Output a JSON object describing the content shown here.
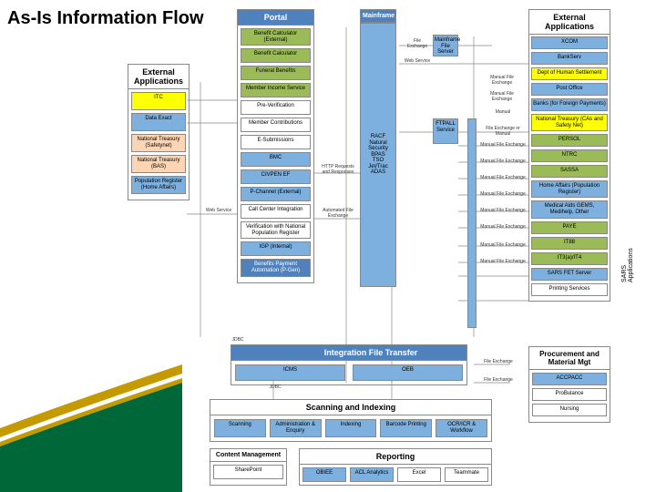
{
  "title": "As-Is Information Flow",
  "colors": {
    "blue": "#7db0de",
    "blue_dark": "#4f81bd",
    "green": "#9bbb59",
    "yellow": "#ffff00",
    "peach": "#fcd5b4",
    "gray": "#d9d9d9",
    "white": "#ffffff",
    "border": "#888888",
    "swoosh_green": "#006838",
    "swoosh_gold": "#c49a00"
  },
  "columns": {
    "ext_left": {
      "header": "External Applications",
      "items": [
        {
          "label": "ITC",
          "fill": "yellow"
        },
        {
          "label": "Data Exact",
          "fill": "blue"
        },
        {
          "label": "National Treasury (Safetynet)",
          "fill": "peach"
        },
        {
          "label": "National Treasury (BAS)",
          "fill": "peach"
        },
        {
          "label": "Population Register (Home Affairs)",
          "fill": "blue"
        }
      ]
    },
    "portal": {
      "header": "Portal",
      "items": [
        {
          "label": "Benefit Calculator (External)",
          "fill": "green"
        },
        {
          "label": "Benefit Calculator",
          "fill": "green"
        },
        {
          "label": "Funeral Benefits",
          "fill": "green"
        },
        {
          "label": "Member Income Service",
          "fill": "green"
        },
        {
          "label": "Pre-Verification",
          "fill": "white"
        },
        {
          "label": "Member Contributions",
          "fill": "white"
        },
        {
          "label": "E-Submissions",
          "fill": "white"
        },
        {
          "label": "BMC",
          "fill": "blue"
        },
        {
          "label": "CIVPEN EF",
          "fill": "blue"
        },
        {
          "label": "P-Channel (External)",
          "fill": "blue"
        },
        {
          "label": "Call Center Integration",
          "fill": "white"
        },
        {
          "label": "Verification with National Population Register",
          "fill": "white"
        },
        {
          "label": "IGP (Internal)",
          "fill": "blue"
        },
        {
          "label": "Benefits Payment Automation (P-Gen)",
          "fill": "blue_dark"
        }
      ]
    },
    "mainframe": {
      "header": "Mainframe",
      "body": "RACF\nNatural Security\nBPAS\nTSO\nJet/Trac\nADAS"
    },
    "mid": [
      {
        "label": "Mainframe File Server",
        "fill": "blue"
      },
      {
        "label": "FTPALL Service",
        "fill": "blue"
      }
    ],
    "integration": {
      "header": "Integration File Transfer",
      "items": [
        {
          "label": "ICMS",
          "fill": "blue"
        },
        {
          "label": "OEB",
          "fill": "blue"
        }
      ]
    },
    "scanning": {
      "header": "Scanning and Indexing",
      "items": [
        {
          "label": "Scanning",
          "fill": "blue"
        },
        {
          "label": "Administration & Enquiry",
          "fill": "blue"
        },
        {
          "label": "Indexing",
          "fill": "blue"
        },
        {
          "label": "Barcode Printing",
          "fill": "blue"
        },
        {
          "label": "OCR/ICR & Workflow",
          "fill": "blue"
        }
      ]
    },
    "cm": {
      "header": "Content Management",
      "items": [
        {
          "label": "SharePoint",
          "fill": "white"
        }
      ]
    },
    "reporting": {
      "header": "Reporting",
      "items": [
        {
          "label": "OBIEE",
          "fill": "blue"
        },
        {
          "label": "ACL Analytics",
          "fill": "blue"
        },
        {
          "label": "Excel",
          "fill": "white"
        },
        {
          "label": "Teammate",
          "fill": "white"
        }
      ]
    },
    "ext_right": {
      "header": "External Applications",
      "items": [
        {
          "label": "XCOM",
          "fill": "blue"
        },
        {
          "label": "BankServ",
          "fill": "blue"
        },
        {
          "label": "Dept of Human Settlement",
          "fill": "yellow"
        },
        {
          "label": "Post Office",
          "fill": "blue"
        },
        {
          "label": "Banks (for Foreign Payments)",
          "fill": "blue"
        },
        {
          "label": "National Treasury (CAs and Safety Net)",
          "fill": "yellow"
        },
        {
          "label": "PERSOL",
          "fill": "green"
        },
        {
          "label": "NTRC",
          "fill": "green"
        },
        {
          "label": "SASSA",
          "fill": "green"
        },
        {
          "label": "Home Affairs (Population Register)",
          "fill": "blue"
        },
        {
          "label": "Medical Aids GEMS, Medihelp, Other",
          "fill": "blue"
        },
        {
          "label": "PAYE",
          "fill": "green"
        },
        {
          "label": "IT88",
          "fill": "green"
        },
        {
          "label": "IT3(a)/IT4",
          "fill": "green"
        },
        {
          "label": "SARS FET Server",
          "fill": "blue"
        },
        {
          "label": "Printing Services",
          "fill": "white"
        }
      ]
    },
    "procure": {
      "header": "Procurement and Material Mgt",
      "items": [
        {
          "label": "ACCPACC",
          "fill": "blue"
        },
        {
          "label": "ProBulance",
          "fill": "white"
        },
        {
          "label": "Nursing",
          "fill": "white"
        }
      ]
    }
  },
  "right_label": "SARS Applications",
  "edge_labels": [
    "Web Service",
    "File Exchange",
    "Web Service",
    "Manual File Exchange",
    "Manual File Exchange",
    "Manual",
    "File Exchange or Manual",
    "Manual File Exchange",
    "Manual File Exchange",
    "Manual File Exchange",
    "Manual File Exchange",
    "Manual File Exchange",
    "Manual File Exchange",
    "Manual File Exchange",
    "Manual File Exchange",
    "File Exchange",
    "File Exchange",
    "JDBC",
    "JDBC",
    "HTTP Requests and Responses",
    "Automated File Exchange"
  ]
}
